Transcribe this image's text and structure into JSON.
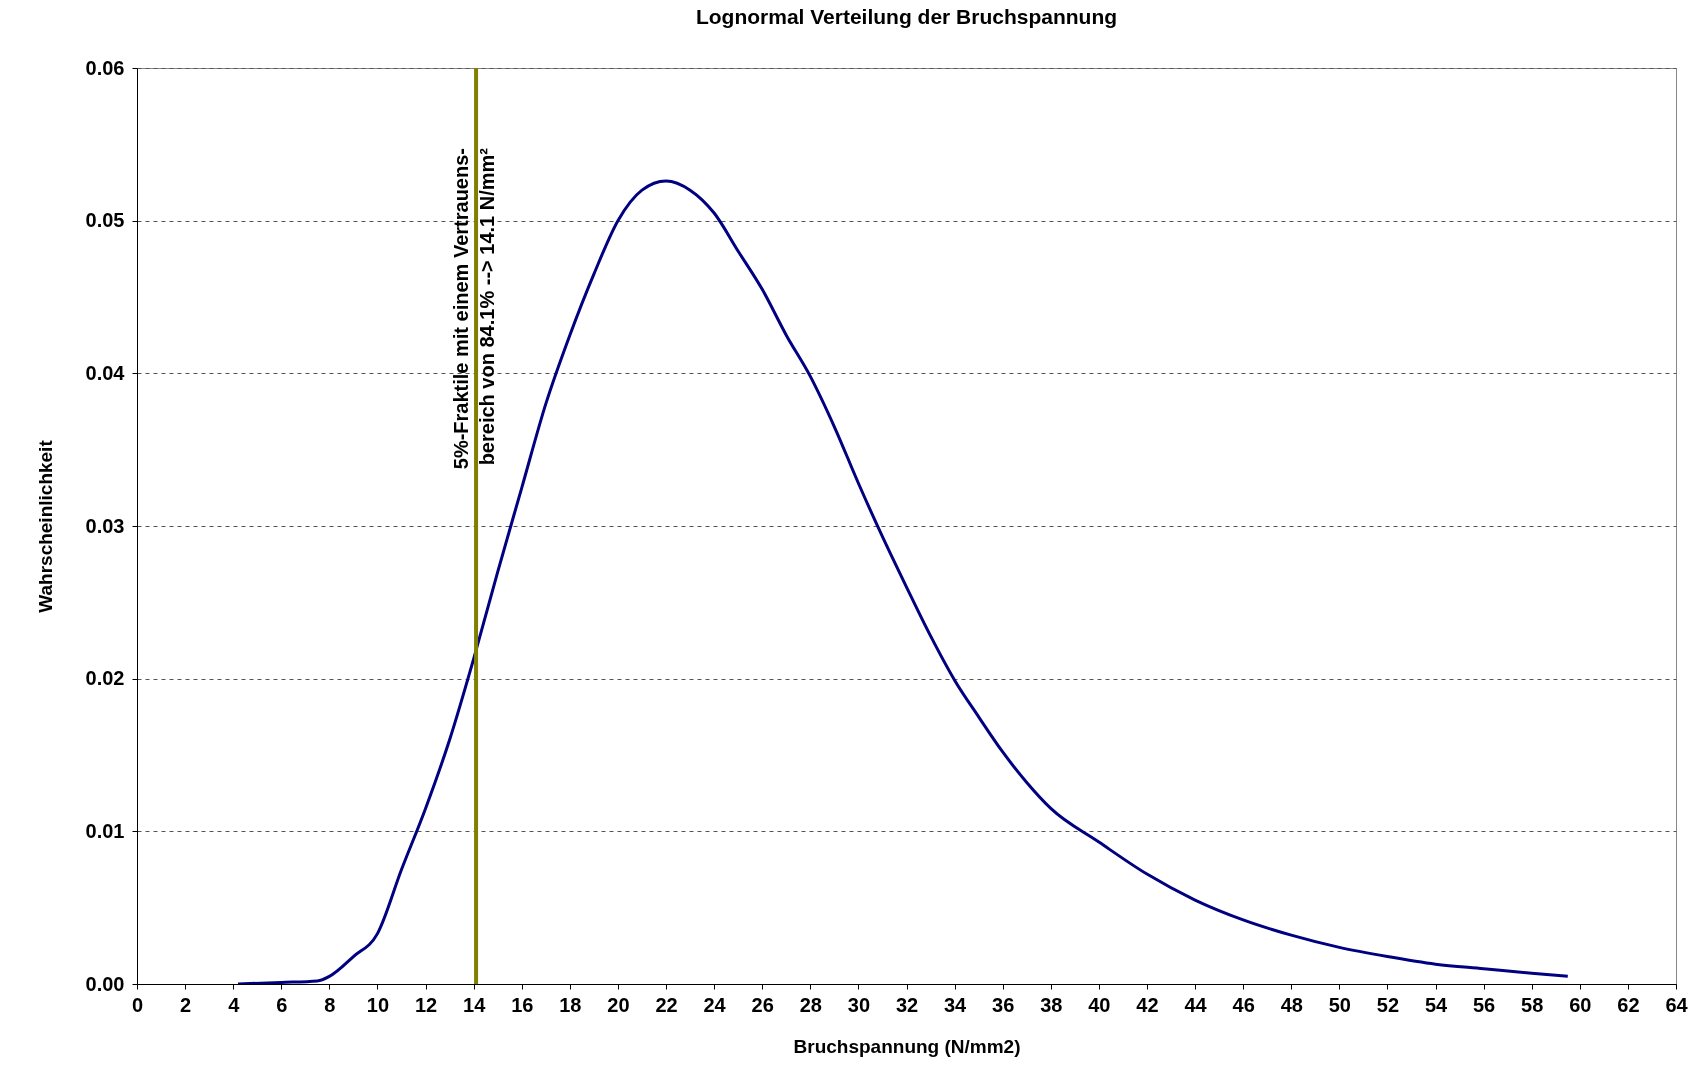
{
  "chart_data": {
    "type": "line",
    "title": "Lognormal Verteilung der Bruchspannung",
    "xlabel": "Bruchspannung (N/mm2)",
    "ylabel": "Wahrscheinlichkeit",
    "x": [
      4.2,
      6,
      7.5,
      8,
      9,
      10,
      11,
      12,
      13,
      14,
      15,
      16,
      17,
      18,
      19,
      20,
      21,
      22,
      23,
      24,
      25,
      26,
      27,
      28,
      29,
      30,
      31,
      32,
      33,
      34,
      35,
      36,
      37,
      38,
      40,
      42,
      44,
      46,
      48,
      50,
      52,
      54,
      56,
      58,
      59.5
    ],
    "series": [
      {
        "color": "#000080",
        "values": [
          0,
          0.0001,
          0.0002,
          0.0005,
          0.0018,
          0.0033,
          0.0075,
          0.0115,
          0.016,
          0.0213,
          0.027,
          0.0325,
          0.038,
          0.0425,
          0.0465,
          0.05,
          0.052,
          0.0526,
          0.052,
          0.0505,
          0.048,
          0.0455,
          0.0425,
          0.0398,
          0.0365,
          0.0328,
          0.0293,
          0.026,
          0.0228,
          0.0199,
          0.0175,
          0.0152,
          0.0132,
          0.0115,
          0.0093,
          0.0072,
          0.0055,
          0.0042,
          0.0032,
          0.0024,
          0.0018,
          0.0013,
          0.001,
          0.0007,
          0.0005
        ]
      }
    ],
    "xlim": [
      0,
      64
    ],
    "xticks": [
      0,
      2,
      4,
      6,
      8,
      10,
      12,
      14,
      16,
      18,
      20,
      22,
      24,
      26,
      28,
      30,
      32,
      34,
      36,
      38,
      40,
      42,
      44,
      46,
      48,
      50,
      52,
      54,
      56,
      58,
      60,
      62,
      64
    ],
    "ylim": [
      0,
      0.06
    ],
    "yticks": [
      {
        "value": 0,
        "label": "0.00"
      },
      {
        "value": 0.01,
        "label": "0.01"
      },
      {
        "value": 0.02,
        "label": "0.02"
      },
      {
        "value": 0.03,
        "label": "0.03"
      },
      {
        "value": 0.04,
        "label": "0.04"
      },
      {
        "value": 0.05,
        "label": "0.05"
      },
      {
        "value": 0.06,
        "label": "0.06"
      }
    ],
    "grid": "y",
    "marker": "none",
    "line_style": "solid",
    "ref_lines": [
      {
        "axis": "x",
        "value": 14.1,
        "color": "#808000",
        "label": "5%-Fraktile mit einem Vertrauens-\nbereich von 84.1% --> 14.1 N/mm²"
      }
    ]
  }
}
